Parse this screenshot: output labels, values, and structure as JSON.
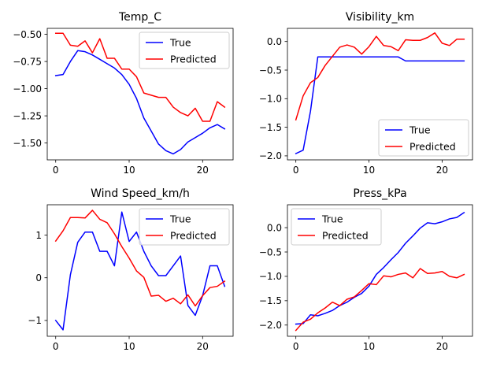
{
  "chart_data": [
    {
      "type": "line",
      "title": "Temp_C",
      "xlabel": "",
      "ylabel": "",
      "xlim": [
        -1.15,
        24.15
      ],
      "ylim": [
        -1.655,
        -0.445
      ],
      "xticks": [
        0,
        10,
        20
      ],
      "yticks": [
        -0.5,
        -0.75,
        -1.0,
        -1.25,
        -1.5
      ],
      "ytick_labels": [
        "−0.50",
        "−0.75",
        "−1.00",
        "−1.25",
        "−1.50"
      ],
      "legend": "upper right",
      "x": [
        0,
        1,
        2,
        3,
        4,
        5,
        6,
        7,
        8,
        9,
        10,
        11,
        12,
        13,
        14,
        15,
        16,
        17,
        18,
        19,
        20,
        21,
        22,
        23
      ],
      "series": [
        {
          "name": "True",
          "color": "#0000ff",
          "values": [
            -0.88,
            -0.87,
            -0.75,
            -0.65,
            -0.66,
            -0.69,
            -0.73,
            -0.77,
            -0.81,
            -0.87,
            -0.96,
            -1.09,
            -1.27,
            -1.39,
            -1.51,
            -1.57,
            -1.6,
            -1.56,
            -1.49,
            -1.45,
            -1.41,
            -1.36,
            -1.33,
            -1.37
          ]
        },
        {
          "name": "Predicted",
          "color": "#ff0000",
          "values": [
            -0.49,
            -0.49,
            -0.6,
            -0.61,
            -0.56,
            -0.67,
            -0.54,
            -0.72,
            -0.72,
            -0.82,
            -0.82,
            -0.89,
            -1.04,
            -1.06,
            -1.08,
            -1.08,
            -1.17,
            -1.22,
            -1.25,
            -1.18,
            -1.3,
            -1.3,
            -1.12,
            -1.17
          ]
        }
      ]
    },
    {
      "type": "line",
      "title": "Visibility_km",
      "xlabel": "",
      "ylabel": "",
      "xlim": [
        -1.15,
        24.15
      ],
      "ylim": [
        -2.07,
        0.23
      ],
      "xticks": [
        0,
        10,
        20
      ],
      "yticks": [
        0.0,
        -0.5,
        -1.0,
        -1.5,
        -2.0
      ],
      "ytick_labels": [
        "0.0",
        "−0.5",
        "−1.0",
        "−1.5",
        "−2.0"
      ],
      "legend": "lower right",
      "x": [
        0,
        1,
        2,
        3,
        4,
        5,
        6,
        7,
        8,
        9,
        10,
        11,
        12,
        13,
        14,
        15,
        16,
        17,
        18,
        19,
        20,
        21,
        22,
        23
      ],
      "series": [
        {
          "name": "True",
          "color": "#0000ff",
          "values": [
            -1.96,
            -1.9,
            -1.22,
            -0.27,
            -0.27,
            -0.27,
            -0.27,
            -0.27,
            -0.27,
            -0.27,
            -0.27,
            -0.27,
            -0.27,
            -0.27,
            -0.27,
            -0.34,
            -0.34,
            -0.34,
            -0.34,
            -0.34,
            -0.34,
            -0.34,
            -0.34,
            -0.34
          ]
        },
        {
          "name": "Predicted",
          "color": "#ff0000",
          "values": [
            -1.37,
            -0.95,
            -0.72,
            -0.63,
            -0.42,
            -0.26,
            -0.1,
            -0.06,
            -0.1,
            -0.22,
            -0.09,
            0.09,
            -0.07,
            -0.09,
            -0.16,
            0.03,
            0.02,
            0.02,
            0.07,
            0.15,
            -0.03,
            -0.07,
            0.04,
            0.04
          ]
        }
      ]
    },
    {
      "type": "line",
      "title": "Wind Speed_km/h",
      "xlabel": "",
      "ylabel": "",
      "xlim": [
        -1.15,
        24.15
      ],
      "ylim": [
        -1.37,
        1.71
      ],
      "xticks": [
        0,
        10,
        20
      ],
      "yticks": [
        1,
        0,
        -1
      ],
      "ytick_labels": [
        "1",
        "0",
        "−1"
      ],
      "legend": "upper right",
      "x": [
        0,
        1,
        2,
        3,
        4,
        5,
        6,
        7,
        8,
        9,
        10,
        11,
        12,
        13,
        14,
        15,
        16,
        17,
        18,
        19,
        20,
        21,
        22,
        23
      ],
      "series": [
        {
          "name": "True",
          "color": "#0000ff",
          "values": [
            -1.0,
            -1.22,
            0.07,
            0.83,
            1.07,
            1.07,
            0.62,
            0.62,
            0.28,
            1.54,
            0.85,
            1.07,
            0.62,
            0.28,
            0.05,
            0.05,
            0.28,
            0.51,
            -0.65,
            -0.88,
            -0.42,
            0.28,
            0.28,
            -0.2
          ]
        },
        {
          "name": "Predicted",
          "color": "#ff0000",
          "values": [
            0.86,
            1.1,
            1.41,
            1.41,
            1.4,
            1.58,
            1.37,
            1.29,
            1.03,
            0.73,
            0.46,
            0.16,
            0.01,
            -0.43,
            -0.41,
            -0.55,
            -0.48,
            -0.61,
            -0.4,
            -0.66,
            -0.42,
            -0.23,
            -0.2,
            -0.08
          ]
        }
      ]
    },
    {
      "type": "line",
      "title": "Press_kPa",
      "xlabel": "",
      "ylabel": "",
      "xlim": [
        -1.15,
        24.15
      ],
      "ylim": [
        -2.23,
        0.47
      ],
      "xticks": [
        0,
        10,
        20
      ],
      "yticks": [
        0.0,
        -0.5,
        -1.0,
        -1.5,
        -2.0
      ],
      "ytick_labels": [
        "0.0",
        "−0.5",
        "−1.0",
        "−1.5",
        "−2.0"
      ],
      "legend": "upper left",
      "x": [
        0,
        1,
        2,
        3,
        4,
        5,
        6,
        7,
        8,
        9,
        10,
        11,
        12,
        13,
        14,
        15,
        16,
        17,
        18,
        19,
        20,
        21,
        22,
        23
      ],
      "series": [
        {
          "name": "True",
          "color": "#0000ff",
          "values": [
            -1.98,
            -1.97,
            -1.79,
            -1.81,
            -1.76,
            -1.7,
            -1.6,
            -1.53,
            -1.43,
            -1.35,
            -1.2,
            -0.96,
            -0.82,
            -0.66,
            -0.51,
            -0.32,
            -0.17,
            -0.01,
            0.1,
            0.08,
            0.12,
            0.18,
            0.21,
            0.31
          ]
        },
        {
          "name": "Predicted",
          "color": "#ff0000",
          "values": [
            -2.11,
            -1.94,
            -1.88,
            -1.75,
            -1.65,
            -1.53,
            -1.6,
            -1.47,
            -1.42,
            -1.29,
            -1.15,
            -1.17,
            -0.99,
            -1.01,
            -0.96,
            -0.93,
            -1.03,
            -0.84,
            -0.94,
            -0.93,
            -0.9,
            -1.0,
            -1.03,
            -0.96
          ]
        }
      ]
    }
  ]
}
